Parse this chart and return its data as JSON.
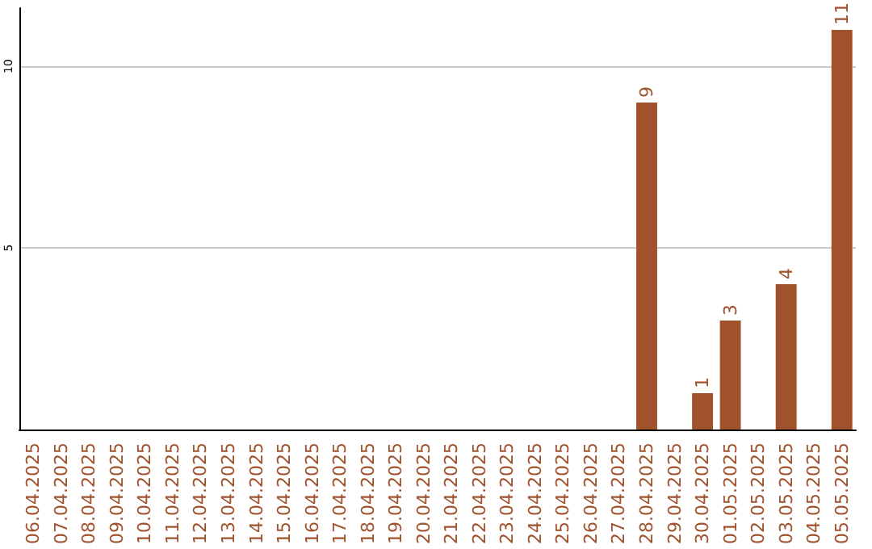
{
  "chart_data": {
    "type": "bar",
    "categories": [
      "06.04.2025",
      "07.04.2025",
      "08.04.2025",
      "09.04.2025",
      "10.04.2025",
      "11.04.2025",
      "12.04.2025",
      "13.04.2025",
      "14.04.2025",
      "15.04.2025",
      "16.04.2025",
      "17.04.2025",
      "18.04.2025",
      "19.04.2025",
      "20.04.2025",
      "21.04.2025",
      "22.04.2025",
      "23.04.2025",
      "24.04.2025",
      "25.04.2025",
      "26.04.2025",
      "27.04.2025",
      "28.04.2025",
      "29.04.2025",
      "30.04.2025",
      "01.05.2025",
      "02.05.2025",
      "03.05.2025",
      "04.05.2025",
      "05.05.2025"
    ],
    "values": [
      0,
      0,
      0,
      0,
      0,
      0,
      0,
      0,
      0,
      0,
      0,
      0,
      0,
      0,
      0,
      0,
      0,
      0,
      0,
      0,
      0,
      0,
      9,
      0,
      1,
      3,
      0,
      4,
      0,
      11
    ],
    "value_labels": [
      null,
      null,
      null,
      null,
      null,
      null,
      null,
      null,
      null,
      null,
      null,
      null,
      null,
      null,
      null,
      null,
      null,
      null,
      null,
      null,
      null,
      null,
      "9",
      null,
      "1",
      "3",
      null,
      "4",
      null,
      "11"
    ],
    "color": "#a0522d",
    "ylim": [
      0,
      11.6
    ],
    "yticks": [
      5,
      10
    ],
    "grid": "y"
  }
}
